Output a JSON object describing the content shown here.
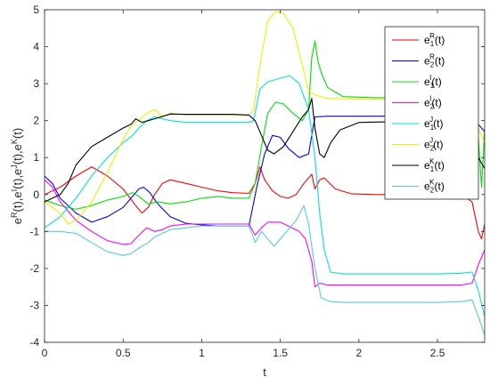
{
  "chart_data": {
    "type": "line",
    "xlabel": "t",
    "ylabel": "e^R(t),e^I(t),e^J(t),e^K(t)",
    "ylabel_parts": {
      "base": "e",
      "sup_r": "R",
      "sup_i": "I",
      "sup_j": "J",
      "sup_k": "K",
      "arg": "(t)",
      "sep": ","
    },
    "xlim": [
      0,
      2.8
    ],
    "ylim": [
      -4,
      5
    ],
    "xticks": [
      "0",
      "0.5",
      "1",
      "1.5",
      "2",
      "2.5"
    ],
    "xtick_values": [
      0,
      0.5,
      1,
      1.5,
      2,
      2.5
    ],
    "yticks": [
      "-4",
      "-3",
      "-2",
      "-1",
      "0",
      "1",
      "2",
      "3",
      "4",
      "5"
    ],
    "ytick_values": [
      -4,
      -3,
      -2,
      -1,
      0,
      1,
      2,
      3,
      4,
      5
    ],
    "grid": false,
    "legend_position": "top-right",
    "series": [
      {
        "name": "e1R(t)",
        "label": {
          "base": "e",
          "sub": "1",
          "sup": "R",
          "arg": "(t)"
        },
        "color": "#ff0000",
        "points": [
          [
            0,
            0
          ],
          [
            0.1,
            0.2
          ],
          [
            0.2,
            0.5
          ],
          [
            0.3,
            0.75
          ],
          [
            0.4,
            0.5
          ],
          [
            0.5,
            0.15
          ],
          [
            0.58,
            -0.3
          ],
          [
            0.62,
            -0.5
          ],
          [
            0.66,
            -0.35
          ],
          [
            0.7,
            0
          ],
          [
            0.75,
            0.3
          ],
          [
            0.8,
            0.4
          ],
          [
            0.9,
            0.3
          ],
          [
            1.0,
            0.2
          ],
          [
            1.1,
            0.1
          ],
          [
            1.2,
            0.05
          ],
          [
            1.3,
            0.03
          ],
          [
            1.34,
            0.3
          ],
          [
            1.37,
            0.75
          ],
          [
            1.4,
            0.4
          ],
          [
            1.45,
            0.1
          ],
          [
            1.5,
            -0.05
          ],
          [
            1.55,
            -0.1
          ],
          [
            1.6,
            0
          ],
          [
            1.65,
            0.3
          ],
          [
            1.7,
            0.55
          ],
          [
            1.72,
            0.15
          ],
          [
            1.75,
            0.4
          ],
          [
            1.78,
            0.45
          ],
          [
            1.85,
            0.15
          ],
          [
            1.95,
            0.02
          ],
          [
            2.1,
            0
          ],
          [
            2.3,
            0
          ],
          [
            2.5,
            0
          ],
          [
            2.65,
            0
          ],
          [
            2.72,
            -0.2
          ],
          [
            2.76,
            -1.0
          ],
          [
            2.78,
            -1.2
          ],
          [
            2.8,
            -0.8
          ]
        ]
      },
      {
        "name": "e2R(t)",
        "label": {
          "base": "e",
          "sub": "2",
          "sup": "R",
          "arg": "(t)"
        },
        "color": "#0000ff",
        "points": [
          [
            0,
            0.5
          ],
          [
            0.05,
            0.3
          ],
          [
            0.1,
            -0.1
          ],
          [
            0.2,
            -0.5
          ],
          [
            0.3,
            -0.75
          ],
          [
            0.4,
            -0.6
          ],
          [
            0.5,
            -0.35
          ],
          [
            0.55,
            -0.1
          ],
          [
            0.6,
            0.15
          ],
          [
            0.63,
            0.2
          ],
          [
            0.67,
            0.05
          ],
          [
            0.72,
            -0.25
          ],
          [
            0.8,
            -0.6
          ],
          [
            0.9,
            -0.78
          ],
          [
            1.0,
            -0.82
          ],
          [
            1.1,
            -0.85
          ],
          [
            1.2,
            -0.85
          ],
          [
            1.3,
            -0.85
          ],
          [
            1.35,
            0.2
          ],
          [
            1.4,
            1.1
          ],
          [
            1.45,
            1.6
          ],
          [
            1.5,
            1.55
          ],
          [
            1.55,
            1.25
          ],
          [
            1.62,
            1.0
          ],
          [
            1.68,
            1.1
          ],
          [
            1.72,
            2.1
          ],
          [
            1.8,
            2.12
          ],
          [
            2.0,
            2.12
          ],
          [
            2.3,
            2.12
          ],
          [
            2.5,
            2.12
          ],
          [
            2.65,
            2.1
          ],
          [
            2.72,
            2.2
          ],
          [
            2.76,
            1.9
          ],
          [
            2.8,
            1.7
          ]
        ]
      },
      {
        "name": "e1I(t)",
        "label": {
          "base": "e",
          "sub": "1",
          "sup": "I",
          "arg": "(t)"
        },
        "color": "#00e000",
        "points": [
          [
            0,
            -0.15
          ],
          [
            0.1,
            -0.3
          ],
          [
            0.2,
            -0.4
          ],
          [
            0.3,
            -0.3
          ],
          [
            0.4,
            -0.15
          ],
          [
            0.5,
            -0.05
          ],
          [
            0.56,
            0.05
          ],
          [
            0.6,
            -0.05
          ],
          [
            0.66,
            -0.25
          ],
          [
            0.72,
            -0.2
          ],
          [
            0.8,
            -0.25
          ],
          [
            0.9,
            -0.2
          ],
          [
            1.0,
            -0.1
          ],
          [
            1.1,
            -0.05
          ],
          [
            1.2,
            -0.1
          ],
          [
            1.3,
            -0.1
          ],
          [
            1.34,
            0.3
          ],
          [
            1.38,
            1.3
          ],
          [
            1.42,
            2.2
          ],
          [
            1.47,
            2.5
          ],
          [
            1.52,
            2.45
          ],
          [
            1.58,
            2.2
          ],
          [
            1.64,
            2.0
          ],
          [
            1.68,
            2.3
          ],
          [
            1.7,
            3.7
          ],
          [
            1.72,
            4.15
          ],
          [
            1.74,
            3.6
          ],
          [
            1.76,
            3.3
          ],
          [
            1.8,
            2.9
          ],
          [
            1.9,
            2.65
          ],
          [
            2.1,
            2.62
          ],
          [
            2.3,
            2.62
          ],
          [
            2.5,
            2.62
          ],
          [
            2.65,
            2.6
          ],
          [
            2.72,
            2.7
          ],
          [
            2.75,
            2.2
          ],
          [
            2.78,
            0.2
          ],
          [
            2.8,
            1.8
          ]
        ]
      },
      {
        "name": "e2I(t)",
        "label": {
          "base": "e",
          "sub": "2",
          "sup": "I",
          "arg": "(t)"
        },
        "color": "#ff00ff",
        "points": [
          [
            0,
            0.4
          ],
          [
            0.05,
            0.2
          ],
          [
            0.1,
            -0.2
          ],
          [
            0.2,
            -0.7
          ],
          [
            0.3,
            -1.0
          ],
          [
            0.4,
            -1.25
          ],
          [
            0.5,
            -1.35
          ],
          [
            0.55,
            -1.33
          ],
          [
            0.6,
            -1.1
          ],
          [
            0.65,
            -0.9
          ],
          [
            0.7,
            -1.0
          ],
          [
            0.75,
            -0.95
          ],
          [
            0.8,
            -0.85
          ],
          [
            0.9,
            -0.8
          ],
          [
            1.0,
            -0.8
          ],
          [
            1.1,
            -0.8
          ],
          [
            1.2,
            -0.8
          ],
          [
            1.3,
            -0.8
          ],
          [
            1.34,
            -1.1
          ],
          [
            1.38,
            -0.9
          ],
          [
            1.42,
            -0.75
          ],
          [
            1.5,
            -0.75
          ],
          [
            1.55,
            -0.85
          ],
          [
            1.62,
            -1.0
          ],
          [
            1.66,
            -1.2
          ],
          [
            1.7,
            -1.8
          ],
          [
            1.72,
            -2.5
          ],
          [
            1.75,
            -2.4
          ],
          [
            1.8,
            -2.45
          ],
          [
            2.0,
            -2.45
          ],
          [
            2.3,
            -2.45
          ],
          [
            2.5,
            -2.45
          ],
          [
            2.65,
            -2.45
          ],
          [
            2.72,
            -2.4
          ],
          [
            2.76,
            -1.9
          ],
          [
            2.8,
            -1.5
          ]
        ]
      },
      {
        "name": "e1J(t)",
        "label": {
          "base": "e",
          "sub": "1",
          "sup": "J",
          "arg": "(t)"
        },
        "color": "#00e0e0",
        "points": [
          [
            0,
            -0.9
          ],
          [
            0.1,
            -0.6
          ],
          [
            0.2,
            -0.1
          ],
          [
            0.3,
            0.5
          ],
          [
            0.4,
            1.0
          ],
          [
            0.5,
            1.4
          ],
          [
            0.56,
            1.6
          ],
          [
            0.6,
            1.8
          ],
          [
            0.65,
            2.0
          ],
          [
            0.7,
            2.1
          ],
          [
            0.8,
            2.0
          ],
          [
            0.9,
            1.95
          ],
          [
            1.0,
            1.95
          ],
          [
            1.1,
            1.95
          ],
          [
            1.2,
            1.95
          ],
          [
            1.3,
            1.95
          ],
          [
            1.33,
            2.0
          ],
          [
            1.37,
            2.85
          ],
          [
            1.42,
            3.05
          ],
          [
            1.5,
            3.15
          ],
          [
            1.56,
            3.22
          ],
          [
            1.62,
            3.0
          ],
          [
            1.68,
            2.3
          ],
          [
            1.72,
            1.0
          ],
          [
            1.75,
            -0.5
          ],
          [
            1.78,
            -1.5
          ],
          [
            1.82,
            -2.1
          ],
          [
            1.9,
            -2.15
          ],
          [
            2.1,
            -2.15
          ],
          [
            2.3,
            -2.15
          ],
          [
            2.5,
            -2.15
          ],
          [
            2.65,
            -2.13
          ],
          [
            2.72,
            -2.1
          ],
          [
            2.76,
            -2.6
          ],
          [
            2.8,
            -3.3
          ]
        ]
      },
      {
        "name": "e2J(t)",
        "label": {
          "base": "e",
          "sub": "2",
          "sup": "J",
          "arg": "(t)"
        },
        "color": "#f0f000",
        "points": [
          [
            0,
            -0.2
          ],
          [
            0.1,
            -0.5
          ],
          [
            0.15,
            -0.8
          ],
          [
            0.2,
            -0.7
          ],
          [
            0.3,
            -0.2
          ],
          [
            0.4,
            0.6
          ],
          [
            0.5,
            1.5
          ],
          [
            0.56,
            1.9
          ],
          [
            0.6,
            2.0
          ],
          [
            0.65,
            2.2
          ],
          [
            0.7,
            2.3
          ],
          [
            0.75,
            2.1
          ],
          [
            0.8,
            2.2
          ],
          [
            0.9,
            2.15
          ],
          [
            1.0,
            2.15
          ],
          [
            1.1,
            2.15
          ],
          [
            1.2,
            2.15
          ],
          [
            1.3,
            2.15
          ],
          [
            1.33,
            2.3
          ],
          [
            1.37,
            3.5
          ],
          [
            1.42,
            4.7
          ],
          [
            1.47,
            4.95
          ],
          [
            1.52,
            4.9
          ],
          [
            1.58,
            4.5
          ],
          [
            1.64,
            3.5
          ],
          [
            1.68,
            2.8
          ],
          [
            1.72,
            2.7
          ],
          [
            1.8,
            2.6
          ],
          [
            2.0,
            2.58
          ],
          [
            2.3,
            2.58
          ],
          [
            2.5,
            2.58
          ],
          [
            2.65,
            2.55
          ],
          [
            2.72,
            2.5
          ],
          [
            2.76,
            1.8
          ],
          [
            2.8,
            1.4
          ]
        ]
      },
      {
        "name": "e1K(t)",
        "label": {
          "base": "e",
          "sub": "1",
          "sup": "K",
          "arg": "(t)"
        },
        "color": "#000000",
        "points": [
          [
            0,
            -0.2
          ],
          [
            0.05,
            -0.1
          ],
          [
            0.1,
            0.0
          ],
          [
            0.15,
            0.3
          ],
          [
            0.2,
            0.8
          ],
          [
            0.3,
            1.3
          ],
          [
            0.4,
            1.55
          ],
          [
            0.5,
            1.8
          ],
          [
            0.55,
            1.9
          ],
          [
            0.58,
            2.05
          ],
          [
            0.62,
            1.95
          ],
          [
            0.7,
            2.05
          ],
          [
            0.8,
            2.18
          ],
          [
            0.9,
            2.17
          ],
          [
            1.0,
            2.17
          ],
          [
            1.1,
            2.17
          ],
          [
            1.2,
            2.17
          ],
          [
            1.3,
            2.15
          ],
          [
            1.34,
            2.0
          ],
          [
            1.38,
            1.6
          ],
          [
            1.42,
            1.2
          ],
          [
            1.46,
            1.1
          ],
          [
            1.52,
            1.3
          ],
          [
            1.58,
            1.7
          ],
          [
            1.64,
            2.1
          ],
          [
            1.68,
            2.3
          ],
          [
            1.7,
            2.6
          ],
          [
            1.72,
            1.8
          ],
          [
            1.75,
            1.1
          ],
          [
            1.78,
            1.0
          ],
          [
            1.82,
            1.4
          ],
          [
            1.88,
            1.75
          ],
          [
            2.0,
            1.95
          ],
          [
            2.2,
            1.97
          ],
          [
            2.4,
            1.97
          ],
          [
            2.6,
            1.95
          ],
          [
            2.68,
            1.95
          ],
          [
            2.72,
            2.1
          ],
          [
            2.76,
            1.0
          ],
          [
            2.8,
            0.7
          ]
        ]
      },
      {
        "name": "e2K(t)",
        "label": {
          "base": "e",
          "sub": "2",
          "sup": "K",
          "arg": "(t)"
        },
        "color": "#55ccdd",
        "points": [
          [
            0,
            -1.0
          ],
          [
            0.1,
            -1.0
          ],
          [
            0.2,
            -1.05
          ],
          [
            0.3,
            -1.3
          ],
          [
            0.4,
            -1.55
          ],
          [
            0.5,
            -1.65
          ],
          [
            0.55,
            -1.6
          ],
          [
            0.6,
            -1.45
          ],
          [
            0.66,
            -1.3
          ],
          [
            0.7,
            -1.15
          ],
          [
            0.8,
            -0.95
          ],
          [
            0.9,
            -0.9
          ],
          [
            1.0,
            -0.85
          ],
          [
            1.1,
            -0.85
          ],
          [
            1.2,
            -0.85
          ],
          [
            1.3,
            -0.85
          ],
          [
            1.34,
            -1.3
          ],
          [
            1.38,
            -1.0
          ],
          [
            1.42,
            -1.2
          ],
          [
            1.46,
            -1.4
          ],
          [
            1.52,
            -1.1
          ],
          [
            1.6,
            -0.7
          ],
          [
            1.65,
            -0.3
          ],
          [
            1.68,
            -0.8
          ],
          [
            1.72,
            -2.0
          ],
          [
            1.76,
            -2.8
          ],
          [
            1.82,
            -2.9
          ],
          [
            1.9,
            -2.92
          ],
          [
            2.1,
            -2.92
          ],
          [
            2.3,
            -2.92
          ],
          [
            2.5,
            -2.92
          ],
          [
            2.65,
            -2.9
          ],
          [
            2.72,
            -2.85
          ],
          [
            2.76,
            -3.3
          ],
          [
            2.8,
            -3.8
          ]
        ]
      }
    ]
  }
}
